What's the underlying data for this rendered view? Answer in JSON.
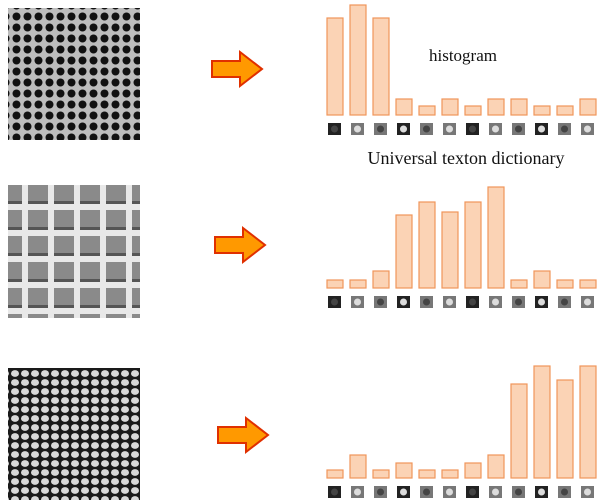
{
  "chart_data": [
    {
      "type": "bar",
      "color": "#fbd3b5",
      "annotations": [
        "histogram",
        "Universal texton dictionary"
      ],
      "values": [
        97,
        110,
        97,
        16,
        9,
        16,
        9,
        16,
        16,
        9,
        9,
        16
      ]
    },
    {
      "type": "bar",
      "color": "#fbd3b5",
      "values": [
        8,
        8,
        17,
        73,
        86,
        76,
        86,
        101,
        8,
        17,
        8,
        8
      ]
    },
    {
      "type": "bar",
      "color": "#fbd3b5",
      "values": [
        8,
        23,
        8,
        15,
        8,
        8,
        15,
        23,
        94,
        112,
        98,
        112
      ]
    }
  ]
}
